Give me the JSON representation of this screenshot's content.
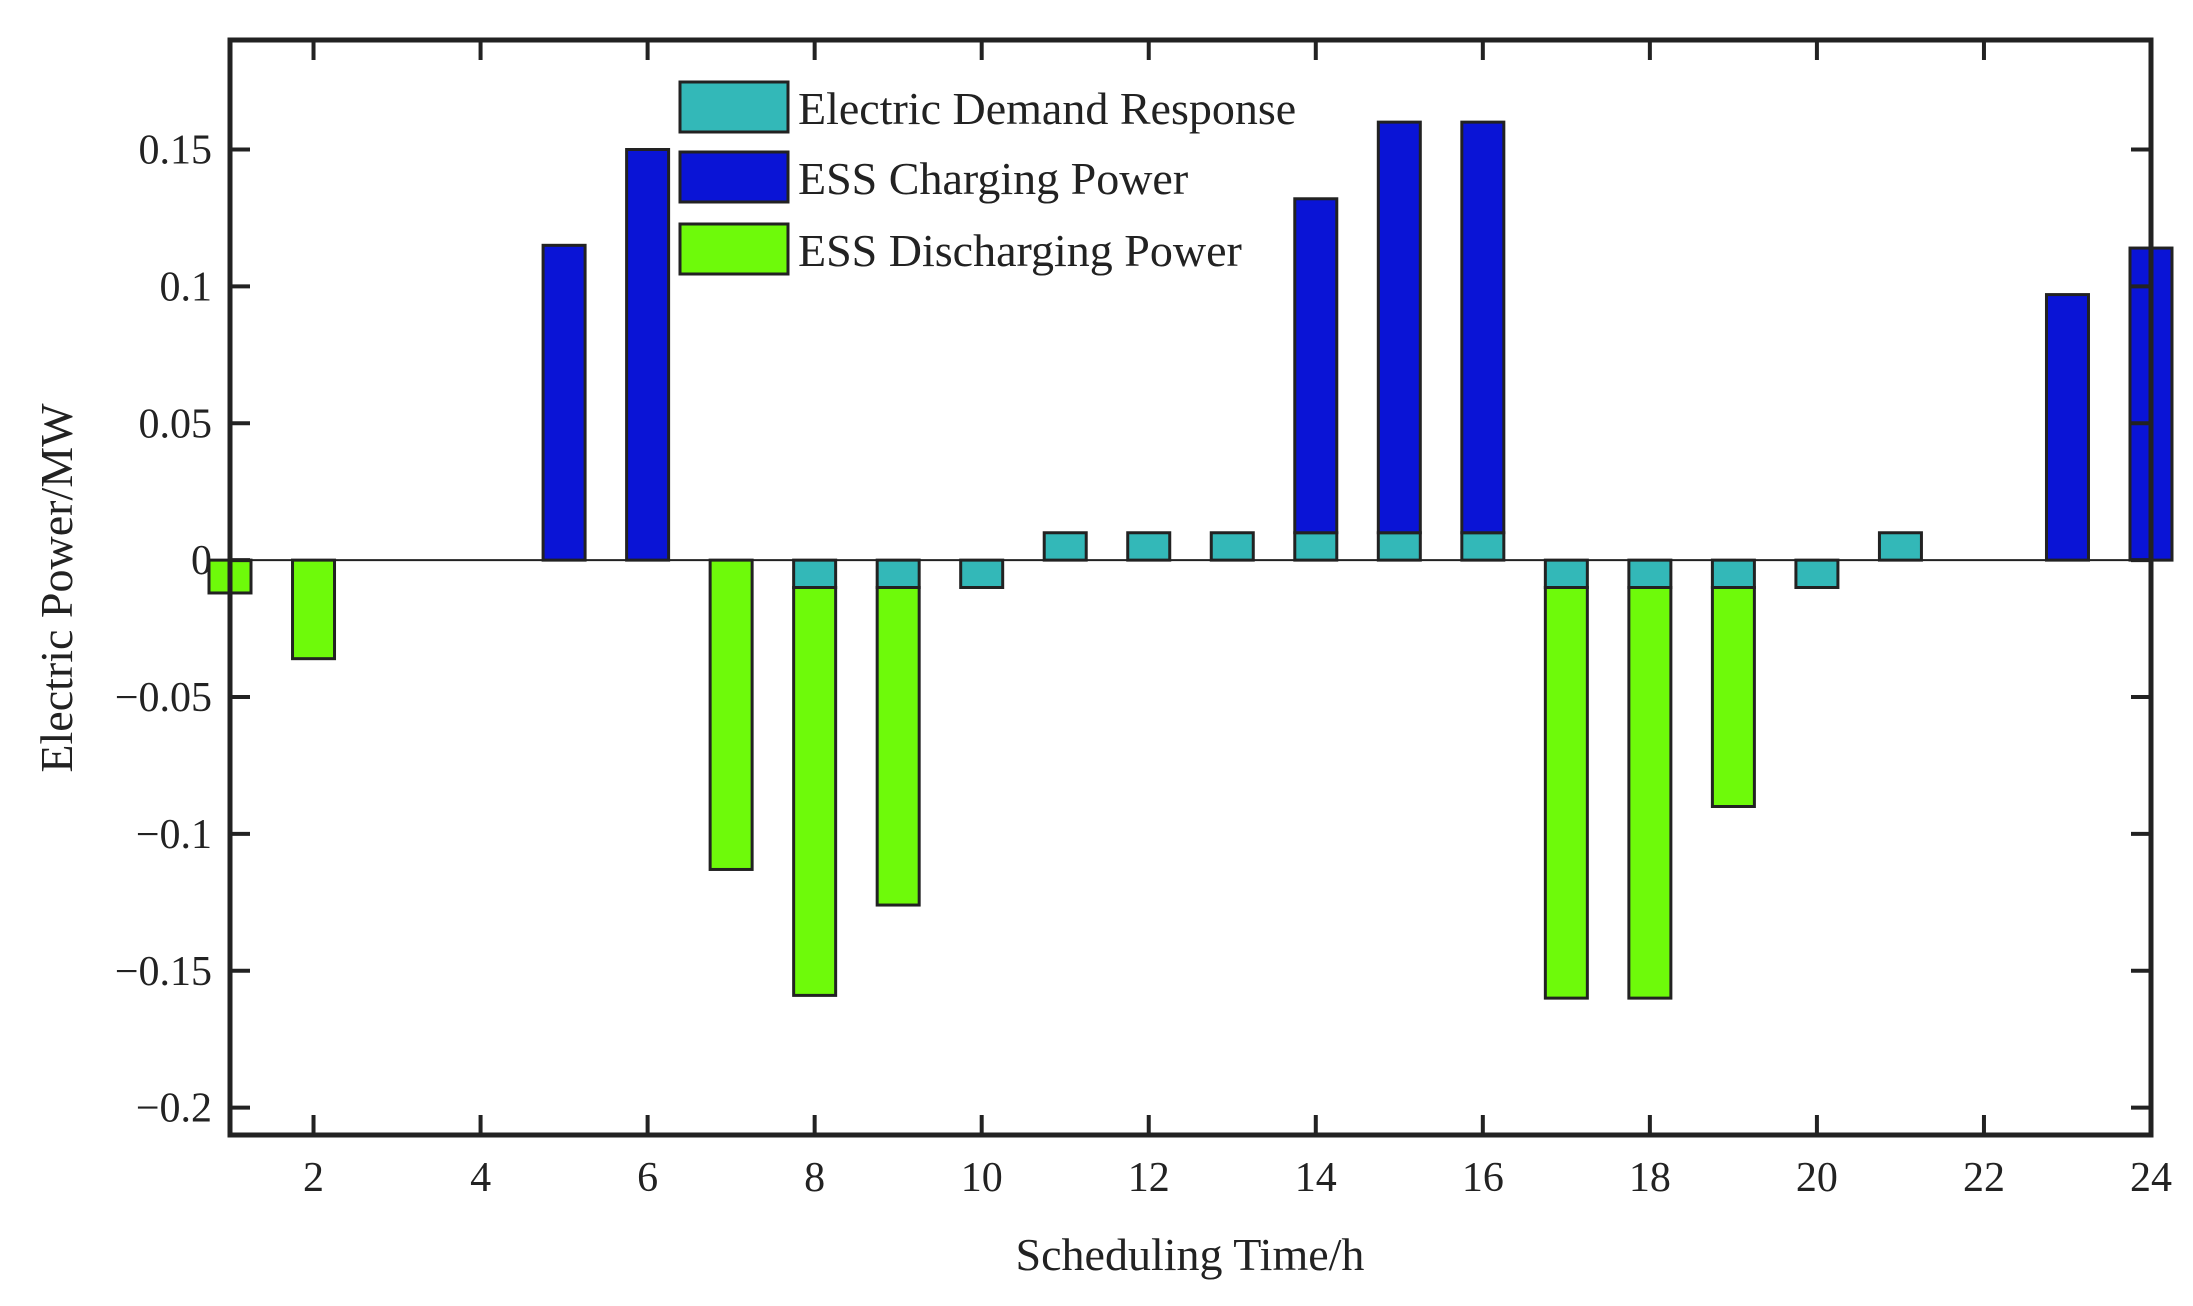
{
  "chart_data": {
    "type": "bar",
    "stacked": true,
    "xlabel": "Scheduling Time/h",
    "ylabel": "Electric Power/MW",
    "xlim": [
      1,
      24
    ],
    "ylim": [
      -0.21,
      0.19
    ],
    "x_ticks": [
      2,
      4,
      6,
      8,
      10,
      12,
      14,
      16,
      18,
      20,
      22,
      24
    ],
    "x_tick_labels": [
      "2",
      "4",
      "6",
      "8",
      "10",
      "12",
      "14",
      "16",
      "18",
      "20",
      "22",
      "24"
    ],
    "y_ticks": [
      -0.2,
      -0.15,
      -0.1,
      -0.05,
      0,
      0.05,
      0.1,
      0.15
    ],
    "y_tick_labels": [
      "−0.2",
      "−0.15",
      "−0.1",
      "−0.05",
      "0",
      "0.05",
      "0.1",
      "0.15"
    ],
    "grid": false,
    "legend_position": "top-center",
    "x": [
      1,
      2,
      3,
      4,
      5,
      6,
      7,
      8,
      9,
      10,
      11,
      12,
      13,
      14,
      15,
      16,
      17,
      18,
      19,
      20,
      21,
      22,
      23,
      24
    ],
    "series": [
      {
        "name": "Electric Demand Response",
        "color": "#33B8B8",
        "values": [
          0,
          0,
          0,
          0,
          0,
          0,
          0,
          -0.01,
          -0.01,
          -0.01,
          0.01,
          0.01,
          0.01,
          0.01,
          0.01,
          0.01,
          -0.01,
          -0.01,
          -0.01,
          -0.01,
          0.01,
          0,
          0,
          0
        ]
      },
      {
        "name": "ESS Charging Power",
        "color": "#0A14D6",
        "values": [
          0,
          0,
          0,
          0,
          0.115,
          0.15,
          0,
          0,
          0,
          0,
          0,
          0,
          0,
          0.122,
          0.15,
          0.15,
          0,
          0,
          0,
          0,
          0,
          0,
          0.097,
          0.114
        ]
      },
      {
        "name": "ESS Discharging Power",
        "color": "#6EFA0A",
        "values": [
          -0.012,
          -0.036,
          0,
          0,
          0,
          0,
          -0.113,
          -0.149,
          -0.116,
          0,
          0,
          0,
          0,
          0,
          0,
          0,
          -0.15,
          -0.15,
          -0.08,
          0,
          0,
          0,
          0,
          0
        ]
      }
    ]
  }
}
